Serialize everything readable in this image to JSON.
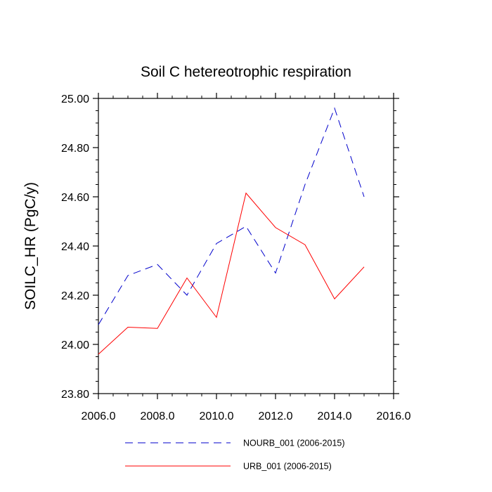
{
  "chart_data": {
    "type": "line",
    "title": "Soil C hetereotrophic respiration",
    "xlabel": "",
    "ylabel": "SOILC_HR  (PgC/y)",
    "xlim": [
      2006,
      2016
    ],
    "ylim": [
      23.8,
      25.0
    ],
    "x_ticks": [
      "2006.0",
      "2008.0",
      "2010.0",
      "2012.0",
      "2014.0",
      "2016.0"
    ],
    "y_ticks": [
      "23.80",
      "24.00",
      "24.20",
      "24.40",
      "24.60",
      "24.80",
      "25.00"
    ],
    "x": [
      2006,
      2007,
      2008,
      2009,
      2010,
      2011,
      2012,
      2013,
      2014,
      2015
    ],
    "series": [
      {
        "name": "NOURB_001 (2006-2015)",
        "color": "#0000cc",
        "style": "dashed",
        "values": [
          24.08,
          24.28,
          24.325,
          24.2,
          24.41,
          24.48,
          24.29,
          24.65,
          24.96,
          24.6
        ]
      },
      {
        "name": "URB_001 (2006-2015)",
        "color": "#ff0000",
        "style": "solid",
        "values": [
          23.96,
          24.07,
          24.065,
          24.27,
          24.11,
          24.615,
          24.475,
          24.405,
          24.185,
          24.315
        ]
      }
    ],
    "grid": false,
    "legend_position": "bottom"
  }
}
